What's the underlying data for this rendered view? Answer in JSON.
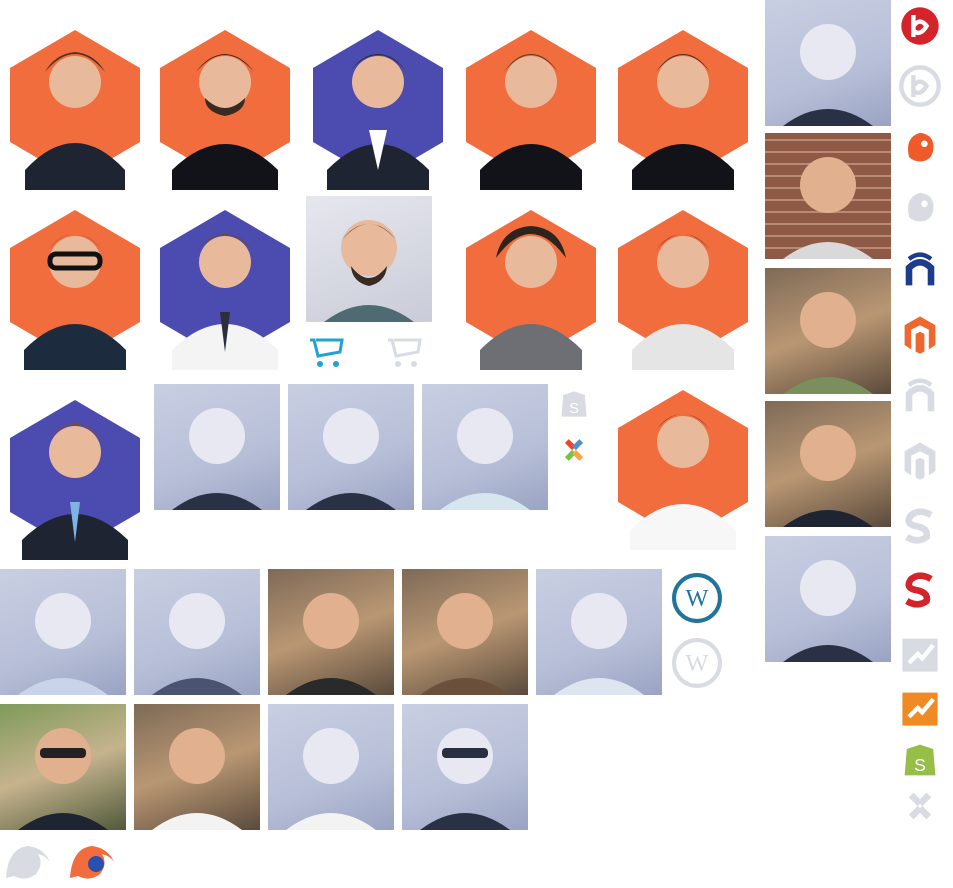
{
  "colors": {
    "orange": "#f26d3d",
    "purple": "#4b4bb0",
    "skin": "#e8b99a",
    "hair": "#4a3426",
    "suit": "#1f2433",
    "icon_gray": "#d9dbe3",
    "bitrix_red": "#d5232b",
    "mailchimp_orange": "#f05a28",
    "nopcommerce_blue": "#1d3c8b",
    "magento_orange": "#ee672f",
    "wordpress_blue": "#21759b",
    "shopify_green": "#95bf47",
    "joomla_multicolor": "#f44321",
    "opencart_blue": "#23a1d1"
  },
  "icons": [
    "bitrix-icon",
    "bitrix-gray-icon",
    "mailchimp-icon",
    "mailchimp-gray-icon",
    "nopcommerce-icon",
    "magento-icon",
    "nopcommerce-gray-icon",
    "magento-gray-icon",
    "sitefinity-gray-icon",
    "sitefinity-icon",
    "unknown-gray-icon",
    "unknown-orange-icon",
    "shopify-icon",
    "joomla-gray-icon",
    "opencart-icon",
    "shopify-gray-icon",
    "joomla-icon",
    "wordpress-icon",
    "wordpress-gray-icon",
    "firefox-gray-icon",
    "firefox-color-icon"
  ]
}
